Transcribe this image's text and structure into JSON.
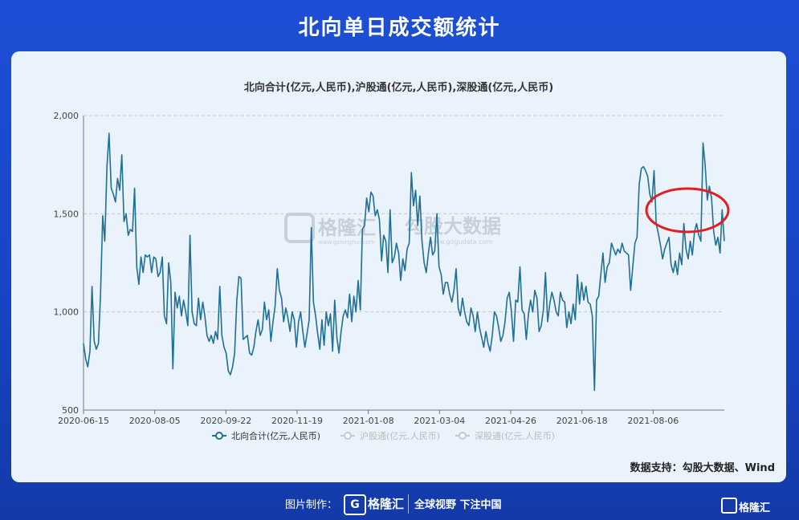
{
  "page": {
    "title": "北向单日成交额统计"
  },
  "chart_data": {
    "type": "line",
    "title": "北向合计(亿元,人民币),沪股通(亿元,人民币),深股通(亿元,人民币)",
    "xlabel": "",
    "ylabel": "",
    "ylim": [
      500,
      2000
    ],
    "y_ticks": [
      "2,000",
      "1,500",
      "1,000",
      "500"
    ],
    "y_tick_values": [
      2000,
      1500,
      1000,
      500
    ],
    "x_ticks": [
      "2020-06-15",
      "2020-08-05",
      "2020-09-22",
      "2020-11-19",
      "2021-01-08",
      "2021-03-04",
      "2021-04-26",
      "2021-06-18",
      "2021-08-06"
    ],
    "grid": "horizontal-dashed",
    "legend_position": "bottom",
    "legend": [
      {
        "name": "北向合计(亿元,人民币)",
        "active": true,
        "color": "#1f6f96"
      },
      {
        "name": "沪股通(亿元,人民币)",
        "active": false,
        "color": "#c8c8c8"
      },
      {
        "name": "深股通(亿元,人民币)",
        "active": false,
        "color": "#c8c8c8"
      }
    ],
    "highlight_annotation": {
      "shape": "ellipse",
      "color": "#e02020"
    },
    "series": [
      {
        "name": "北向合计(亿元,人民币)",
        "values": [
          840,
          760,
          720,
          800,
          1130,
          850,
          810,
          840,
          1090,
          1490,
          1360,
          1740,
          1910,
          1630,
          1600,
          1560,
          1680,
          1620,
          1800,
          1460,
          1500,
          1390,
          1420,
          1410,
          1630,
          1230,
          1140,
          1280,
          1200,
          1290,
          1280,
          1290,
          1200,
          1280,
          1270,
          1180,
          1200,
          1280,
          980,
          940,
          1250,
          1150,
          710,
          1100,
          1020,
          1080,
          980,
          1060,
          1000,
          930,
          1390,
          1000,
          940,
          930,
          1070,
          960,
          1050,
          980,
          880,
          850,
          880,
          840,
          900,
          860,
          1130,
          880,
          820,
          790,
          700,
          680,
          720,
          790,
          1060,
          1180,
          1170,
          860,
          870,
          880,
          790,
          780,
          820,
          900,
          960,
          880,
          910,
          1050,
          960,
          1010,
          850,
          950,
          1030,
          1220,
          1110,
          1070,
          950,
          1020,
          970,
          900,
          1000,
          960,
          820,
          950,
          1000,
          900,
          820,
          890,
          960,
          1430,
          1050,
          980,
          890,
          810,
          960,
          830,
          1000,
          930,
          990,
          800,
          1060,
          870,
          790,
          900,
          980,
          1010,
          970,
          1090,
          950,
          1080,
          1000,
          1160,
          1010,
          1420,
          1440,
          1580,
          1510,
          1610,
          1590,
          1490,
          1520,
          1470,
          1260,
          1390,
          1360,
          1200,
          1520,
          1250,
          1280,
          1350,
          1300,
          1160,
          1270,
          1210,
          1320,
          1350,
          1710,
          1540,
          1620,
          1440,
          1590,
          1360,
          1250,
          1200,
          1300,
          1380,
          1290,
          1310,
          1500,
          1230,
          1190,
          1090,
          1150,
          1150,
          1090,
          1050,
          1110,
          1220,
          1020,
          980,
          1070,
          1000,
          950,
          930,
          1020,
          980,
          900,
          1000,
          920,
          870,
          820,
          900,
          840,
          800,
          880,
          1000,
          980,
          920,
          850,
          880,
          950,
          1070,
          1100,
          1000,
          850,
          1060,
          1050,
          1230,
          1010,
          990,
          860,
          990,
          1060,
          1000,
          1110,
          1070,
          900,
          930,
          1010,
          1200,
          950,
          1040,
          1100,
          1060,
          1000,
          980,
          1100,
          1060,
          1050,
          920,
          1000,
          940,
          1040,
          960,
          1190,
          1040,
          1150,
          1060,
          1130,
          1050,
          1040,
          980,
          600,
          1060,
          1080,
          1190,
          1300,
          1150,
          1230,
          1250,
          1350,
          1320,
          1290,
          1320,
          1300,
          1350,
          1310,
          1300,
          1290,
          1110,
          1230,
          1350,
          1380,
          1650,
          1730,
          1740,
          1720,
          1690,
          1600,
          1560,
          1720,
          1450,
          1400,
          1340,
          1270,
          1320,
          1350,
          1380,
          1240,
          1200,
          1260,
          1190,
          1300,
          1240,
          1450,
          1320,
          1270,
          1360,
          1290,
          1410,
          1450,
          1390,
          1360,
          1860,
          1750,
          1570,
          1640,
          1580,
          1410,
          1340,
          1380,
          1300,
          1520,
          1360
        ],
        "color": "#1f6f96"
      }
    ]
  },
  "watermark": {
    "brand": "格隆汇",
    "brand_url": "www.gelonghui.com",
    "data_brand": "勾股大数据",
    "data_url": "www.gogudata.com"
  },
  "source": {
    "text": "数据支持：勾股大数据、Wind"
  },
  "footer": {
    "made_by": "图片制作：",
    "logo_letter": "G",
    "logo_text": "格隆汇",
    "slogan": "全球视野 下注中国",
    "corner_text": "格隆汇"
  }
}
